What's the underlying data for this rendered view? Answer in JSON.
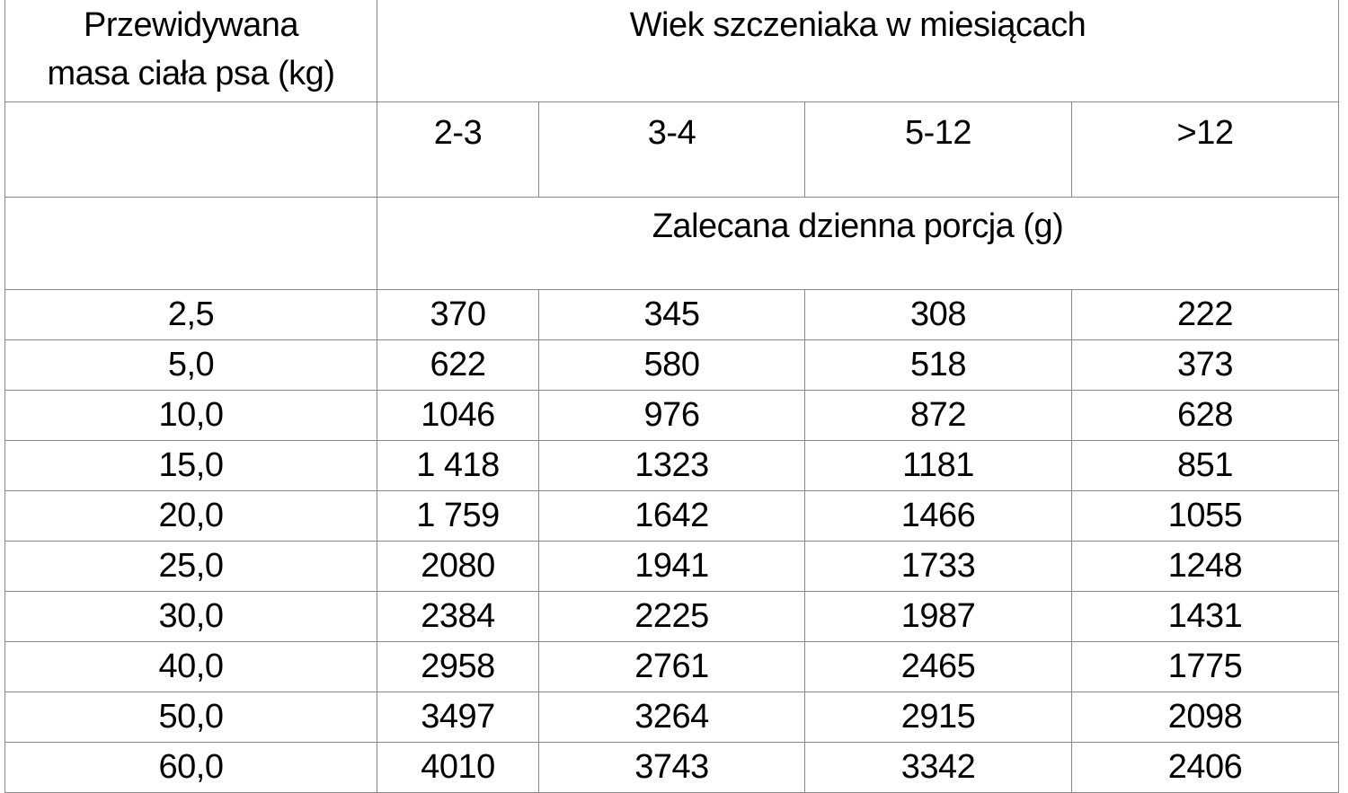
{
  "header": {
    "mass_label_line1": "Przewidywana",
    "mass_label_line2": "masa ciała psa (kg)",
    "age_label": "Wiek szczeniaka w miesiącach",
    "age_groups": [
      "2-3",
      "3-4",
      "5-12",
      ">12"
    ],
    "portion_label": "Zalecana dzienna porcja (g)"
  },
  "rows": [
    {
      "mass": "2,5",
      "values": [
        "370",
        "345",
        "308",
        "222"
      ]
    },
    {
      "mass": "5,0",
      "values": [
        "622",
        "580",
        "518",
        "373"
      ]
    },
    {
      "mass": "10,0",
      "values": [
        "1046",
        "976",
        "872",
        "628"
      ]
    },
    {
      "mass": "15,0",
      "values": [
        "1 418",
        "1323",
        "1181",
        "851"
      ]
    },
    {
      "mass": "20,0",
      "values": [
        "1 759",
        "1642",
        "1466",
        "1055"
      ]
    },
    {
      "mass": "25,0",
      "values": [
        "2080",
        "1941",
        "1733",
        "1248"
      ]
    },
    {
      "mass": "30,0",
      "values": [
        "2384",
        "2225",
        "1987",
        "1431"
      ]
    },
    {
      "mass": "40,0",
      "values": [
        "2958",
        "2761",
        "2465",
        "1775"
      ]
    },
    {
      "mass": "50,0",
      "values": [
        "3497",
        "3264",
        "2915",
        "2098"
      ]
    },
    {
      "mass": "60,0",
      "values": [
        "4010",
        "3743",
        "3342",
        "2406"
      ]
    }
  ]
}
